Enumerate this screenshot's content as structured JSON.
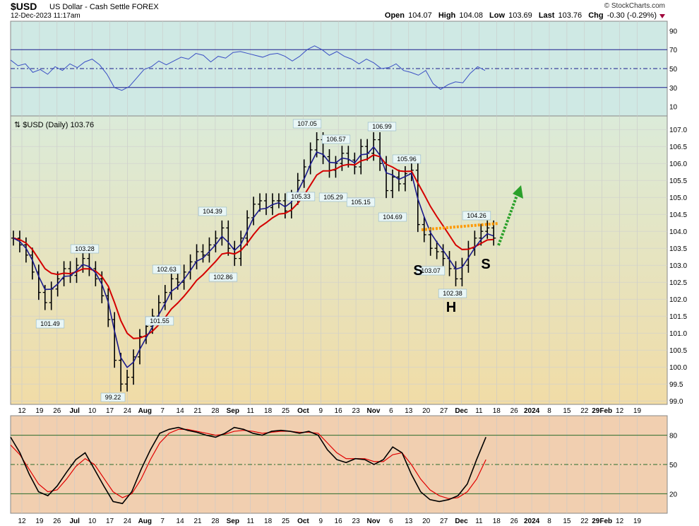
{
  "header": {
    "symbol": "$USD",
    "description": "US Dollar - Cash Settle FOREX",
    "timestamp": "12-Dec-2023 11:17am",
    "brand": "© StockCharts.com",
    "open_label": "Open",
    "open": "104.07",
    "high_label": "High",
    "high": "104.08",
    "low_label": "Low",
    "low": "103.69",
    "last_label": "Last",
    "last": "103.76",
    "chg_label": "Chg",
    "chg": "-0.30 (-0.29%)"
  },
  "colors": {
    "rsi_bg": "#cfe9e4",
    "price_bg_top": "#dbebd9",
    "price_bg_bottom": "#f1dca6",
    "stoch_bg": "#f1cfb0",
    "ema_fast": "#1a1a8c",
    "ema_slow": "#d40000",
    "neckline": "#ff9900",
    "arrow": "#2aa02a"
  },
  "x_axis_labels": [
    "12",
    "19",
    "26",
    "Jul",
    "10",
    "17",
    "24",
    "Aug",
    "7",
    "14",
    "21",
    "28",
    "Sep",
    "11",
    "18",
    "25",
    "Oct",
    "9",
    "16",
    "23",
    "Nov",
    "6",
    "13",
    "20",
    "27",
    "Dec",
    "11",
    "18",
    "26",
    "2024",
    "8",
    "15",
    "22",
    "29Feb",
    "12",
    "19"
  ],
  "chart_data": [
    {
      "type": "line",
      "name": "RSI panel",
      "ylim": [
        0,
        100
      ],
      "y_ticks": [
        90,
        70,
        50,
        30,
        10
      ],
      "reference_lines": [
        70,
        50,
        30
      ],
      "points": [
        [
          0,
          59
        ],
        [
          5,
          53
        ],
        [
          10,
          55
        ],
        [
          15,
          46
        ],
        [
          20,
          49
        ],
        [
          25,
          44
        ],
        [
          30,
          52
        ],
        [
          35,
          48
        ],
        [
          40,
          55
        ],
        [
          45,
          51
        ],
        [
          50,
          57
        ],
        [
          55,
          60
        ],
        [
          60,
          54
        ],
        [
          65,
          44
        ],
        [
          70,
          30
        ],
        [
          75,
          27
        ],
        [
          80,
          31
        ],
        [
          85,
          40
        ],
        [
          90,
          49
        ],
        [
          95,
          52
        ],
        [
          100,
          58
        ],
        [
          105,
          54
        ],
        [
          110,
          58
        ],
        [
          115,
          62
        ],
        [
          120,
          60
        ],
        [
          125,
          66
        ],
        [
          130,
          64
        ],
        [
          135,
          57
        ],
        [
          140,
          63
        ],
        [
          145,
          61
        ],
        [
          150,
          67
        ],
        [
          155,
          68
        ],
        [
          160,
          66
        ],
        [
          165,
          64
        ],
        [
          170,
          62
        ],
        [
          175,
          65
        ],
        [
          180,
          66
        ],
        [
          185,
          63
        ],
        [
          190,
          58
        ],
        [
          195,
          63
        ],
        [
          200,
          70
        ],
        [
          205,
          74
        ],
        [
          210,
          70
        ],
        [
          215,
          64
        ],
        [
          220,
          68
        ],
        [
          225,
          63
        ],
        [
          230,
          60
        ],
        [
          235,
          55
        ],
        [
          240,
          60
        ],
        [
          245,
          56
        ],
        [
          250,
          50
        ],
        [
          255,
          51
        ],
        [
          260,
          55
        ],
        [
          265,
          48
        ],
        [
          270,
          46
        ],
        [
          275,
          43
        ],
        [
          280,
          48
        ],
        [
          285,
          34
        ],
        [
          290,
          28
        ],
        [
          295,
          33
        ],
        [
          300,
          36
        ],
        [
          305,
          35
        ],
        [
          310,
          45
        ],
        [
          315,
          52
        ],
        [
          320,
          48
        ]
      ]
    },
    {
      "type": "candlestick-ohlc",
      "name": "$USD (Daily) 103.76",
      "y_ticks": [
        107.0,
        106.5,
        106.0,
        105.5,
        105.0,
        104.5,
        104.0,
        103.5,
        103.0,
        102.5,
        102.0,
        101.5,
        101.0,
        100.5,
        100.0,
        99.5,
        99.0
      ],
      "ylim": [
        98.9,
        107.4
      ],
      "series_close": [
        103.8,
        103.6,
        103.3,
        102.8,
        102.2,
        101.9,
        102.3,
        102.6,
        102.9,
        102.7,
        103.0,
        103.2,
        102.9,
        102.6,
        102.1,
        101.4,
        100.2,
        99.5,
        99.7,
        100.3,
        100.9,
        101.2,
        101.5,
        101.9,
        102.2,
        102.6,
        102.5,
        102.8,
        103.1,
        103.4,
        103.3,
        103.6,
        103.8,
        104.1,
        103.5,
        103.2,
        103.8,
        104.4,
        104.8,
        104.9,
        104.7,
        104.9,
        104.9,
        104.6,
        105.0,
        105.5,
        105.9,
        106.4,
        106.7,
        106.2,
        105.8,
        106.0,
        106.3,
        106.1,
        105.9,
        106.5,
        106.3,
        106.7,
        106.0,
        105.2,
        105.6,
        105.4,
        105.7,
        105.8,
        104.2,
        103.9,
        103.5,
        103.4,
        103.2,
        102.9,
        102.6,
        103.0,
        103.5,
        103.8,
        104.0,
        104.1,
        103.8
      ],
      "annotations": [
        {
          "label": "103.28",
          "x": 103.28
        },
        {
          "label": "101.49",
          "x": 101.49
        },
        {
          "label": "99.22",
          "x": 99.22
        },
        {
          "label": "102.63",
          "x": 102.63
        },
        {
          "label": "101.55",
          "x": 101.55
        },
        {
          "label": "104.39",
          "x": 104.39
        },
        {
          "label": "102.86",
          "x": 102.86
        },
        {
          "label": "107.05",
          "x": 107.05
        },
        {
          "label": "106.57",
          "x": 106.57
        },
        {
          "label": "105.33",
          "x": 105.33
        },
        {
          "label": "105.29",
          "x": 105.29
        },
        {
          "label": "106.99",
          "x": 106.99
        },
        {
          "label": "105.15",
          "x": 105.15
        },
        {
          "label": "105.96",
          "x": 105.96
        },
        {
          "label": "104.69",
          "x": 104.69
        },
        {
          "label": "103.07",
          "x": 103.07
        },
        {
          "label": "102.38",
          "x": 102.38
        },
        {
          "label": "104.26",
          "x": 104.26
        }
      ],
      "pattern_labels": [
        "S",
        "H",
        "S"
      ]
    },
    {
      "type": "line",
      "name": "Stochastic panel",
      "ylim": [
        0,
        100
      ],
      "y_ticks": [
        80,
        50,
        20
      ],
      "reference_lines": [
        80,
        50,
        20
      ],
      "fast": [
        78,
        62,
        40,
        22,
        18,
        28,
        42,
        55,
        62,
        45,
        28,
        12,
        10,
        22,
        45,
        65,
        82,
        86,
        88,
        85,
        83,
        80,
        78,
        82,
        88,
        86,
        82,
        80,
        84,
        85,
        84,
        82,
        84,
        80,
        65,
        55,
        52,
        56,
        55,
        50,
        55,
        68,
        62,
        40,
        22,
        14,
        12,
        14,
        18,
        30,
        55,
        78
      ],
      "slow": [
        70,
        60,
        45,
        30,
        22,
        24,
        35,
        48,
        56,
        50,
        36,
        22,
        16,
        20,
        35,
        55,
        72,
        82,
        86,
        86,
        84,
        82,
        80,
        81,
        84,
        85,
        84,
        82,
        83,
        84,
        84,
        83,
        83,
        82,
        72,
        62,
        56,
        56,
        56,
        53,
        53,
        60,
        62,
        50,
        35,
        24,
        18,
        15,
        16,
        22,
        35,
        55
      ]
    }
  ]
}
